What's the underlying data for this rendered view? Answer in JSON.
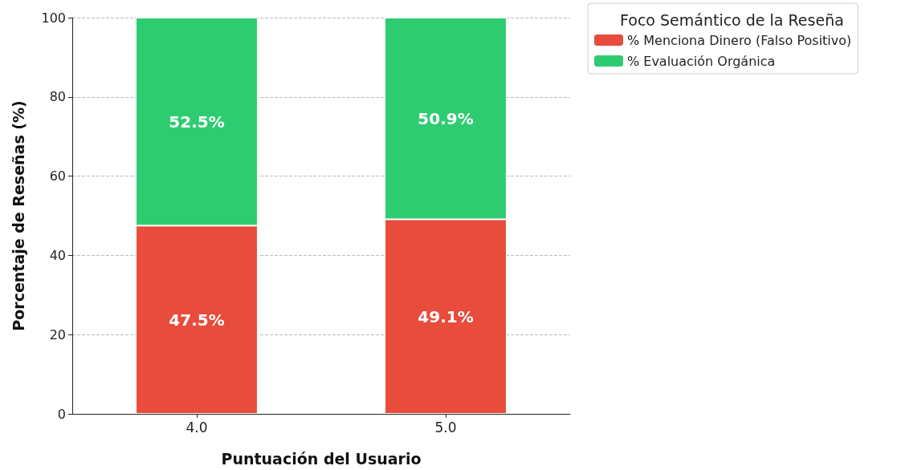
{
  "chart_data": {
    "type": "bar",
    "xlabel": "Puntuación del Usuario",
    "ylabel": "Porcentaje de Reseñas (%)",
    "legend_title": "Foco Semántico de la Reseña",
    "categories": [
      "4.0",
      "5.0"
    ],
    "series": [
      {
        "name": "% Menciona Dinero (Falso Positivo)",
        "color": "#e74c3c",
        "values": [
          47.5,
          49.1
        ],
        "value_labels": [
          "47.5%",
          "49.1%"
        ]
      },
      {
        "name": "% Evaluación Orgánica",
        "color": "#2ecc71",
        "values": [
          52.5,
          50.9
        ],
        "value_labels": [
          "52.5%",
          "50.9%"
        ]
      }
    ],
    "stacked": true,
    "ylim": [
      0,
      100
    ],
    "yticks": [
      0,
      20,
      40,
      60,
      80,
      100
    ],
    "grid": "y",
    "legend": "top right"
  }
}
